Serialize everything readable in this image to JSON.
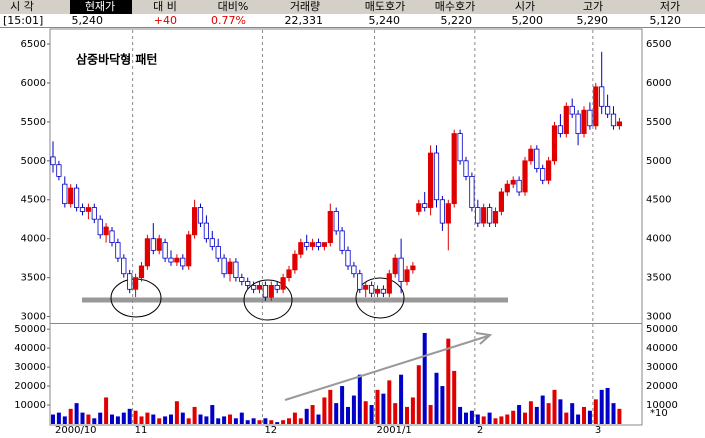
{
  "quote": {
    "labels": [
      "시 각",
      "현재가",
      "대 비",
      "대비%",
      "거래량",
      "매도호가",
      "매수호가",
      "시가",
      "고가",
      "저가"
    ],
    "values": [
      "[15:01]",
      "5,240",
      "+40",
      "0.77%",
      "22,331",
      "5,240",
      "5,220",
      "5,200",
      "5,290",
      "5,120"
    ]
  },
  "chart_data": {
    "type": "candlestick",
    "annotation": "삼중바닥형 패턴",
    "volume_unit": "*10",
    "up_color": "#e00000",
    "down_color": "#0000c8",
    "grid": true,
    "categories": [
      "2000/10",
      null,
      null,
      null,
      null,
      null,
      null,
      null,
      null,
      null,
      null,
      null,
      null,
      null,
      "11",
      null,
      null,
      null,
      null,
      null,
      null,
      null,
      null,
      null,
      null,
      null,
      null,
      null,
      null,
      null,
      null,
      null,
      null,
      null,
      null,
      null,
      "12",
      null,
      null,
      null,
      null,
      null,
      null,
      null,
      null,
      null,
      null,
      null,
      null,
      null,
      null,
      null,
      null,
      null,
      null,
      "2001/1",
      null,
      null,
      null,
      null,
      null,
      null,
      null,
      null,
      null,
      null,
      null,
      null,
      null,
      null,
      null,
      null,
      "2",
      null,
      null,
      null,
      null,
      null,
      null,
      null,
      null,
      null,
      null,
      null,
      null,
      null,
      null,
      null,
      null,
      null,
      null,
      null,
      "3",
      null,
      null,
      null,
      null
    ],
    "candles": [
      [
        5050,
        5250,
        4850,
        4950
      ],
      [
        4950,
        5000,
        4750,
        4800
      ],
      [
        4700,
        4800,
        4400,
        4450
      ],
      [
        4450,
        4700,
        4400,
        4650
      ],
      [
        4650,
        4700,
        4350,
        4400
      ],
      [
        4400,
        4450,
        4300,
        4350
      ],
      [
        4350,
        4450,
        4250,
        4400
      ],
      [
        4400,
        4450,
        4200,
        4250
      ],
      [
        4250,
        4300,
        4000,
        4050
      ],
      [
        4050,
        4200,
        3950,
        4150
      ],
      [
        4100,
        4150,
        3900,
        3950
      ],
      [
        3950,
        4000,
        3700,
        3750
      ],
      [
        3750,
        3800,
        3500,
        3550
      ],
      [
        3550,
        3600,
        3300,
        3350
      ],
      [
        3350,
        3550,
        3250,
        3500
      ],
      [
        3500,
        3700,
        3450,
        3650
      ],
      [
        3650,
        4050,
        3600,
        4000
      ],
      [
        4000,
        4200,
        3800,
        3850
      ],
      [
        3850,
        4050,
        3800,
        4000
      ],
      [
        3950,
        4000,
        3700,
        3750
      ],
      [
        3750,
        3850,
        3650,
        3700
      ],
      [
        3700,
        3800,
        3650,
        3750
      ],
      [
        3750,
        3800,
        3600,
        3650
      ],
      [
        3650,
        4100,
        3600,
        4050
      ],
      [
        4050,
        4500,
        4000,
        4400
      ],
      [
        4400,
        4450,
        4150,
        4200
      ],
      [
        4200,
        4300,
        3950,
        4000
      ],
      [
        4000,
        4100,
        3850,
        3900
      ],
      [
        3900,
        4000,
        3700,
        3750
      ],
      [
        3750,
        3800,
        3500,
        3550
      ],
      [
        3550,
        3750,
        3450,
        3700
      ],
      [
        3700,
        3750,
        3450,
        3500
      ],
      [
        3500,
        3550,
        3400,
        3450
      ],
      [
        3450,
        3500,
        3350,
        3400
      ],
      [
        3400,
        3450,
        3300,
        3350
      ],
      [
        3350,
        3450,
        3300,
        3400
      ],
      [
        3400,
        3450,
        3200,
        3250
      ],
      [
        3250,
        3450,
        3200,
        3400
      ],
      [
        3400,
        3450,
        3300,
        3350
      ],
      [
        3350,
        3550,
        3300,
        3500
      ],
      [
        3500,
        3650,
        3450,
        3600
      ],
      [
        3600,
        3850,
        3550,
        3800
      ],
      [
        3800,
        4000,
        3750,
        3950
      ],
      [
        3950,
        4050,
        3850,
        3900
      ],
      [
        3900,
        4000,
        3850,
        3950
      ],
      [
        3950,
        4000,
        3850,
        3900
      ],
      [
        3900,
        3950,
        3850,
        3950
      ],
      [
        3950,
        4450,
        3900,
        4350
      ],
      [
        4350,
        4400,
        4050,
        4100
      ],
      [
        4100,
        4150,
        3800,
        3850
      ],
      [
        3850,
        3900,
        3600,
        3650
      ],
      [
        3650,
        3700,
        3500,
        3550
      ],
      [
        3550,
        3600,
        3300,
        3350
      ],
      [
        3350,
        3450,
        3250,
        3400
      ],
      [
        3400,
        3450,
        3250,
        3300
      ],
      [
        3300,
        3400,
        3250,
        3350
      ],
      [
        3350,
        3400,
        3250,
        3300
      ],
      [
        3300,
        3600,
        3250,
        3550
      ],
      [
        3550,
        3800,
        3500,
        3750
      ],
      [
        3750,
        4000,
        3300,
        3450
      ],
      [
        3450,
        3650,
        3400,
        3600
      ],
      [
        3600,
        3700,
        3550,
        3650
      ],
      [
        4350,
        4500,
        4300,
        4450
      ],
      [
        4450,
        4600,
        4350,
        4400
      ],
      [
        4400,
        5200,
        4300,
        5100
      ],
      [
        5100,
        5200,
        4400,
        4500
      ],
      [
        4500,
        4550,
        4100,
        4200
      ],
      [
        4200,
        4500,
        3850,
        4450
      ],
      [
        4450,
        5400,
        4400,
        5350
      ],
      [
        5350,
        5400,
        4950,
        5000
      ],
      [
        5000,
        5050,
        4750,
        4800
      ],
      [
        4800,
        4850,
        4350,
        4400
      ],
      [
        4400,
        4500,
        4150,
        4200
      ],
      [
        4200,
        4450,
        4150,
        4400
      ],
      [
        4400,
        4450,
        4150,
        4200
      ],
      [
        4200,
        4400,
        4150,
        4350
      ],
      [
        4350,
        4650,
        4300,
        4600
      ],
      [
        4600,
        4750,
        4550,
        4700
      ],
      [
        4700,
        4800,
        4650,
        4750
      ],
      [
        4750,
        4800,
        4550,
        4600
      ],
      [
        4600,
        5050,
        4550,
        5000
      ],
      [
        5000,
        5200,
        4950,
        5150
      ],
      [
        5150,
        5200,
        4850,
        4900
      ],
      [
        4900,
        4950,
        4700,
        4750
      ],
      [
        4750,
        5050,
        4700,
        5000
      ],
      [
        5000,
        5500,
        4950,
        5450
      ],
      [
        5450,
        5600,
        5300,
        5350
      ],
      [
        5350,
        5750,
        5300,
        5700
      ],
      [
        5700,
        5800,
        5550,
        5600
      ],
      [
        5600,
        5650,
        5200,
        5350
      ],
      [
        5350,
        5700,
        5300,
        5650
      ],
      [
        5650,
        5750,
        5400,
        5450
      ],
      [
        5450,
        6000,
        5400,
        5950
      ],
      [
        5950,
        6400,
        5600,
        5700
      ],
      [
        5700,
        5850,
        5550,
        5600
      ],
      [
        5600,
        5700,
        5400,
        5450
      ],
      [
        5450,
        5550,
        5400,
        5500
      ]
    ],
    "volume": [
      5000,
      6000,
      4000,
      8000,
      11000,
      6000,
      5000,
      3000,
      6000,
      14000,
      5000,
      4000,
      6000,
      8000,
      7000,
      4000,
      6000,
      5000,
      3000,
      4000,
      5000,
      12000,
      6000,
      3000,
      9000,
      5000,
      4000,
      10000,
      3000,
      4000,
      5000,
      3000,
      6000,
      2000,
      3000,
      2000,
      3000,
      2000,
      1000,
      2000,
      3000,
      6000,
      3000,
      8000,
      10000,
      5000,
      14000,
      18000,
      11000,
      20000,
      9000,
      15000,
      26000,
      12000,
      10000,
      18000,
      16000,
      23000,
      11000,
      26000,
      9000,
      14000,
      31000,
      48000,
      10000,
      27000,
      20000,
      45000,
      28000,
      9000,
      6000,
      7000,
      5000,
      4000,
      6000,
      3000,
      4000,
      5000,
      7000,
      10000,
      6000,
      12000,
      9000,
      15000,
      11000,
      18000,
      13000,
      6000,
      11000,
      5000,
      9000,
      7000,
      13000,
      18000,
      19000,
      11000,
      8000
    ],
    "ylim": [
      2930,
      6680
    ],
    "yticks": [
      3000,
      3500,
      4000,
      4500,
      5000,
      5500,
      6000,
      6500
    ],
    "y2lim": [
      0,
      52200
    ],
    "y2ticks": [
      10000,
      20000,
      30000,
      40000,
      50000
    ]
  }
}
